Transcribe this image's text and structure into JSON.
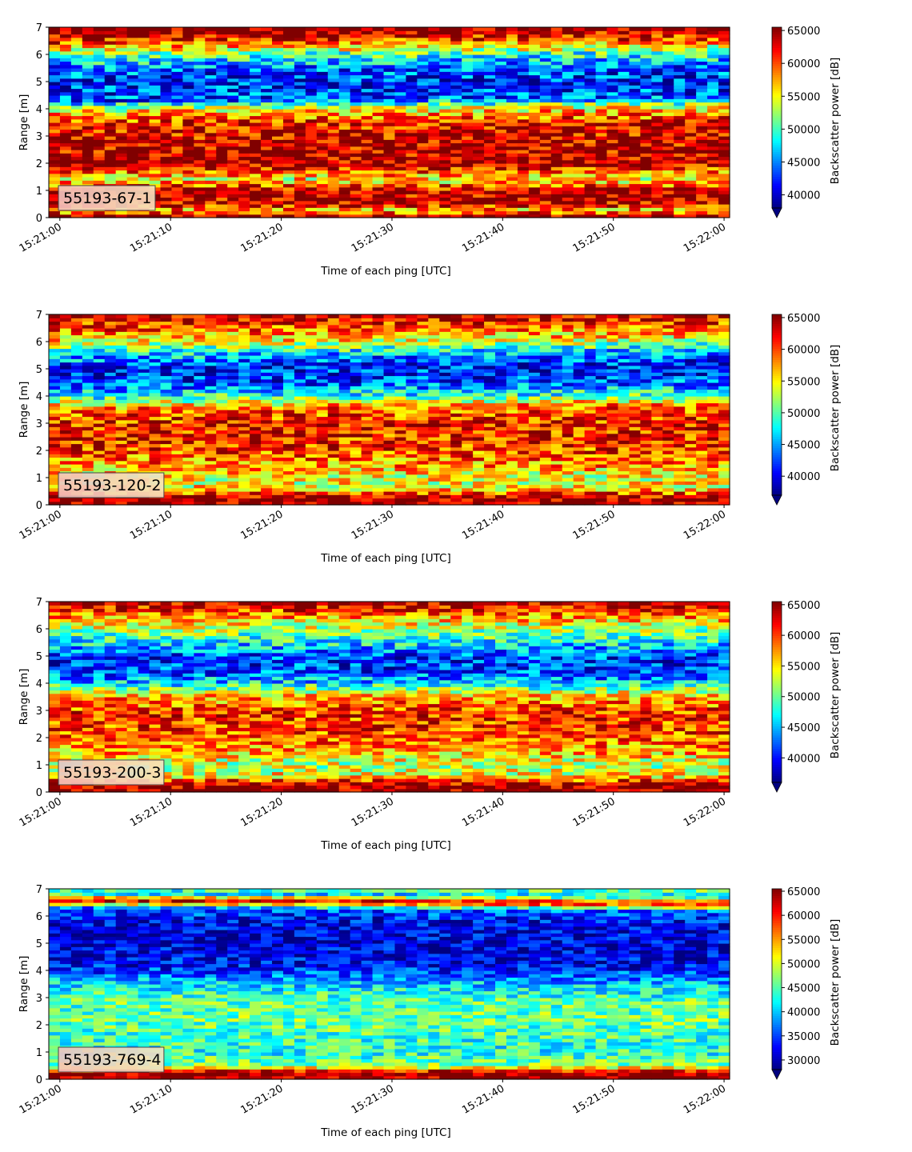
{
  "colormap": "jet",
  "chart_data": [
    {
      "type": "heatmap",
      "label": "55193-67-1",
      "xlabel": "Time of each ping [UTC]",
      "ylabel": "Range [m]",
      "colorbar_label": "Backscatter power [dB]",
      "x_ticks": [
        "15:21:00",
        "15:21:10",
        "15:21:20",
        "15:21:30",
        "15:21:40",
        "15:21:50",
        "15:22:00"
      ],
      "xlim": [
        "15:20:59",
        "15:22:00.5"
      ],
      "y_ticks": [
        0,
        1,
        2,
        3,
        4,
        5,
        6,
        7
      ],
      "ylim": [
        0,
        7
      ],
      "clim": [
        38000,
        65500
      ],
      "colorbar_ticks": [
        40000,
        45000,
        50000,
        55000,
        60000,
        65000
      ],
      "colorbar_extend": "min",
      "grid": false,
      "range_profile": [
        {
          "range": 0.1,
          "value": 65000
        },
        {
          "range": 0.25,
          "value": 56000
        },
        {
          "range": 0.5,
          "value": 63500
        },
        {
          "range": 1.0,
          "value": 64000
        },
        {
          "range": 1.4,
          "value": 55000
        },
        {
          "range": 2.0,
          "value": 64500
        },
        {
          "range": 2.7,
          "value": 63500
        },
        {
          "range": 3.4,
          "value": 62000
        },
        {
          "range": 3.9,
          "value": 56000
        },
        {
          "range": 4.3,
          "value": 44000
        },
        {
          "range": 4.9,
          "value": 42000
        },
        {
          "range": 5.5,
          "value": 44500
        },
        {
          "range": 6.0,
          "value": 51000
        },
        {
          "range": 6.4,
          "value": 60000
        },
        {
          "range": 6.8,
          "value": 65000
        },
        {
          "range": 7.0,
          "value": 65500
        }
      ]
    },
    {
      "type": "heatmap",
      "label": "55193-120-2",
      "xlabel": "Time of each ping [UTC]",
      "ylabel": "Range [m]",
      "colorbar_label": "Backscatter power [dB]",
      "x_ticks": [
        "15:21:00",
        "15:21:10",
        "15:21:20",
        "15:21:30",
        "15:21:40",
        "15:21:50",
        "15:22:00"
      ],
      "xlim": [
        "15:20:59",
        "15:22:00.5"
      ],
      "y_ticks": [
        0,
        1,
        2,
        3,
        4,
        5,
        6,
        7
      ],
      "ylim": [
        0,
        7
      ],
      "clim": [
        37000,
        65500
      ],
      "colorbar_ticks": [
        40000,
        45000,
        50000,
        55000,
        60000,
        65000
      ],
      "colorbar_extend": "min",
      "grid": false,
      "range_profile": [
        {
          "range": 0.1,
          "value": 65000
        },
        {
          "range": 0.3,
          "value": 64000
        },
        {
          "range": 0.6,
          "value": 55000
        },
        {
          "range": 1.0,
          "value": 54000
        },
        {
          "range": 1.5,
          "value": 58000
        },
        {
          "range": 2.2,
          "value": 61000
        },
        {
          "range": 2.9,
          "value": 61500
        },
        {
          "range": 3.5,
          "value": 59000
        },
        {
          "range": 4.0,
          "value": 48000
        },
        {
          "range": 4.5,
          "value": 42000
        },
        {
          "range": 5.0,
          "value": 41000
        },
        {
          "range": 5.5,
          "value": 46000
        },
        {
          "range": 6.0,
          "value": 55000
        },
        {
          "range": 6.5,
          "value": 60000
        },
        {
          "range": 7.0,
          "value": 64500
        }
      ]
    },
    {
      "type": "heatmap",
      "label": "55193-200-3",
      "xlabel": "Time of each ping [UTC]",
      "ylabel": "Range [m]",
      "colorbar_label": "Backscatter power [dB]",
      "x_ticks": [
        "15:21:00",
        "15:21:10",
        "15:21:20",
        "15:21:30",
        "15:21:40",
        "15:21:50",
        "15:22:00"
      ],
      "xlim": [
        "15:20:59",
        "15:22:00.5"
      ],
      "y_ticks": [
        0,
        1,
        2,
        3,
        4,
        5,
        6,
        7
      ],
      "ylim": [
        0,
        7
      ],
      "clim": [
        36000,
        65500
      ],
      "colorbar_ticks": [
        40000,
        45000,
        50000,
        55000,
        60000,
        65000
      ],
      "colorbar_extend": "min",
      "grid": false,
      "range_profile": [
        {
          "range": 0.1,
          "value": 65000
        },
        {
          "range": 0.3,
          "value": 64000
        },
        {
          "range": 0.6,
          "value": 55000
        },
        {
          "range": 1.0,
          "value": 52000
        },
        {
          "range": 1.5,
          "value": 57000
        },
        {
          "range": 2.2,
          "value": 60000
        },
        {
          "range": 2.9,
          "value": 60500
        },
        {
          "range": 3.5,
          "value": 57000
        },
        {
          "range": 4.0,
          "value": 46000
        },
        {
          "range": 4.5,
          "value": 41000
        },
        {
          "range": 5.0,
          "value": 41500
        },
        {
          "range": 5.5,
          "value": 47000
        },
        {
          "range": 6.0,
          "value": 52000
        },
        {
          "range": 6.5,
          "value": 58000
        },
        {
          "range": 7.0,
          "value": 64500
        }
      ]
    },
    {
      "type": "heatmap",
      "label": "55193-769-4",
      "xlabel": "Time of each ping [UTC]",
      "ylabel": "Range [m]",
      "colorbar_label": "Backscatter power [dB]",
      "x_ticks": [
        "15:21:00",
        "15:21:10",
        "15:21:20",
        "15:21:30",
        "15:21:40",
        "15:21:50",
        "15:22:00"
      ],
      "xlim": [
        "15:20:59",
        "15:22:00.5"
      ],
      "y_ticks": [
        0,
        1,
        2,
        3,
        4,
        5,
        6,
        7
      ],
      "ylim": [
        0,
        7
      ],
      "clim": [
        28000,
        65500
      ],
      "colorbar_ticks": [
        30000,
        35000,
        40000,
        45000,
        50000,
        55000,
        60000,
        65000
      ],
      "colorbar_extend": "min",
      "grid": false,
      "range_profile": [
        {
          "range": 0.1,
          "value": 64000
        },
        {
          "range": 0.25,
          "value": 65000
        },
        {
          "range": 0.5,
          "value": 47000
        },
        {
          "range": 1.0,
          "value": 43000
        },
        {
          "range": 1.5,
          "value": 44000
        },
        {
          "range": 2.2,
          "value": 46000
        },
        {
          "range": 3.0,
          "value": 45000
        },
        {
          "range": 3.6,
          "value": 40000
        },
        {
          "range": 4.2,
          "value": 33000
        },
        {
          "range": 5.0,
          "value": 31000
        },
        {
          "range": 5.8,
          "value": 32000
        },
        {
          "range": 6.3,
          "value": 36000
        },
        {
          "range": 6.6,
          "value": 63000
        },
        {
          "range": 6.85,
          "value": 40000
        },
        {
          "range": 7.0,
          "value": 45000
        }
      ]
    }
  ]
}
